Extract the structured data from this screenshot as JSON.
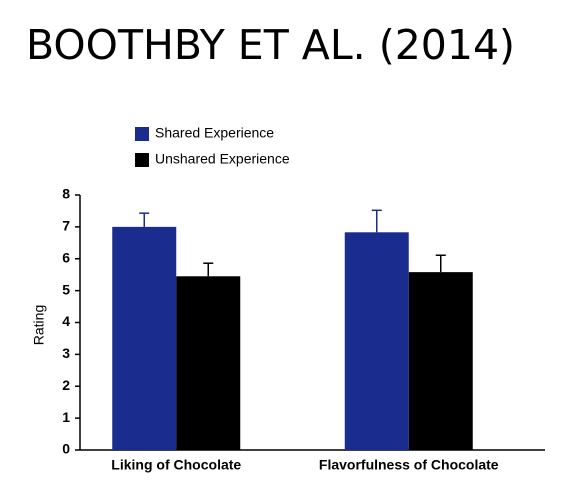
{
  "chart_data": {
    "type": "bar",
    "title": "BOOTHBY ET AL. (2014)",
    "y_label": "Rating",
    "categories": [
      "Liking of Chocolate",
      "Flavorfulness of Chocolate"
    ],
    "series": [
      {
        "name": "Shared Experience",
        "color": "#1b2c8f",
        "values": [
          7.0,
          6.83
        ],
        "errors": [
          0.43,
          0.69
        ]
      },
      {
        "name": "Unshared Experience",
        "color": "#000000",
        "values": [
          5.45,
          5.58
        ],
        "errors": [
          0.41,
          0.53
        ]
      }
    ],
    "ylim": [
      0,
      8
    ],
    "yticks": [
      0,
      1,
      2,
      3,
      4,
      5,
      6,
      7,
      8
    ],
    "legend": "top-left"
  }
}
